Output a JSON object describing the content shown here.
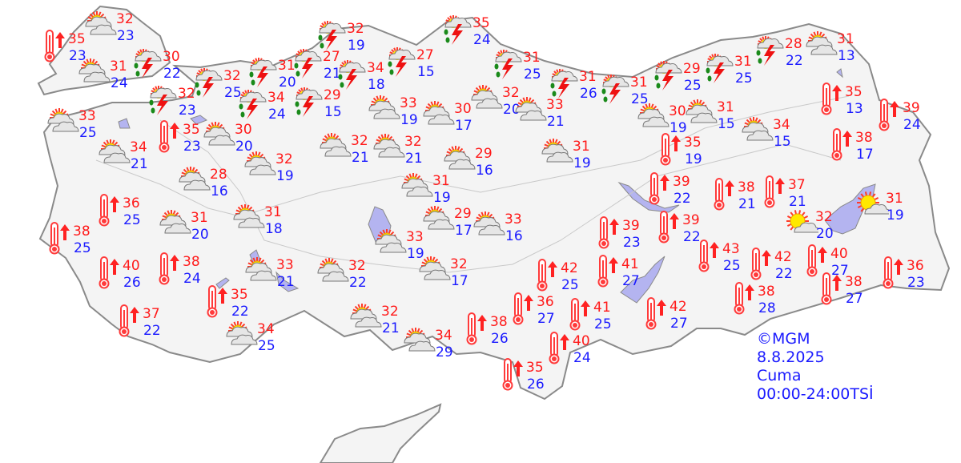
{
  "legend": {
    "copyright": "©MGM",
    "date": "8.8.2025",
    "day": "Cuma",
    "period": "00:00-24:00TSİ"
  },
  "colors": {
    "max_temp": "#ff1a1a",
    "min_temp": "#1a1aff",
    "land": "#f4f4f4",
    "border": "#8a8a8a",
    "water": "#b4b4f0"
  },
  "icon_types": {
    "partly": "partly-cloudy-icon",
    "storm": "thunderstorm-icon",
    "hot": "hot-thermometer-icon",
    "sunny": "mostly-sunny-icon"
  },
  "stations": [
    {
      "type": "partly",
      "max": "32",
      "min": "23"
    },
    {
      "type": "hot",
      "max": "35",
      "min": "23"
    },
    {
      "type": "partly",
      "max": "31",
      "min": "24"
    },
    {
      "type": "storm",
      "max": "30",
      "min": "22"
    },
    {
      "type": "storm",
      "max": "32",
      "min": "25"
    },
    {
      "type": "storm",
      "max": "32",
      "min": "23"
    },
    {
      "type": "partly",
      "max": "33",
      "min": "25"
    },
    {
      "type": "hot",
      "max": "35",
      "min": "23"
    },
    {
      "type": "partly",
      "max": "30",
      "min": "20"
    },
    {
      "type": "partly",
      "max": "34",
      "min": "21"
    },
    {
      "type": "partly",
      "max": "28",
      "min": "16"
    },
    {
      "type": "partly",
      "max": "32",
      "min": "19"
    },
    {
      "type": "storm",
      "max": "31",
      "min": "20"
    },
    {
      "type": "storm",
      "max": "27",
      "min": "21"
    },
    {
      "type": "storm",
      "max": "34",
      "min": "24"
    },
    {
      "type": "storm",
      "max": "32",
      "min": "19"
    },
    {
      "type": "storm",
      "max": "34",
      "min": "18"
    },
    {
      "type": "storm",
      "max": "29",
      "min": "15"
    },
    {
      "type": "storm",
      "max": "27",
      "min": "15"
    },
    {
      "type": "storm",
      "max": "35",
      "min": "24"
    },
    {
      "type": "partly",
      "max": "33",
      "min": "19"
    },
    {
      "type": "partly",
      "max": "30",
      "min": "17"
    },
    {
      "type": "partly",
      "max": "32",
      "min": "20"
    },
    {
      "type": "partly",
      "max": "33",
      "min": "21"
    },
    {
      "type": "storm",
      "max": "31",
      "min": "25"
    },
    {
      "type": "storm",
      "max": "31",
      "min": "26"
    },
    {
      "type": "storm",
      "max": "31",
      "min": "25"
    },
    {
      "type": "storm",
      "max": "29",
      "min": "25"
    },
    {
      "type": "storm",
      "max": "31",
      "min": "25"
    },
    {
      "type": "storm",
      "max": "28",
      "min": "22"
    },
    {
      "type": "partly",
      "max": "31",
      "min": "13"
    },
    {
      "type": "partly",
      "max": "32",
      "min": "21"
    },
    {
      "type": "partly",
      "max": "32",
      "min": "21"
    },
    {
      "type": "partly",
      "max": "29",
      "min": "16"
    },
    {
      "type": "partly",
      "max": "31",
      "min": "19"
    },
    {
      "type": "partly",
      "max": "30",
      "min": "19"
    },
    {
      "type": "partly",
      "max": "31",
      "min": "15"
    },
    {
      "type": "partly",
      "max": "34",
      "min": "15"
    },
    {
      "type": "hot",
      "max": "35",
      "min": "13"
    },
    {
      "type": "hot",
      "max": "39",
      "min": "24"
    },
    {
      "type": "hot",
      "max": "38",
      "min": "17"
    },
    {
      "type": "hot",
      "max": "35",
      "min": "19"
    },
    {
      "type": "partly",
      "max": "31",
      "min": "19"
    },
    {
      "type": "partly",
      "max": "31",
      "min": "18"
    },
    {
      "type": "hot",
      "max": "36",
      "min": "25"
    },
    {
      "type": "partly",
      "max": "31",
      "min": "20"
    },
    {
      "type": "hot",
      "max": "38",
      "min": "25"
    },
    {
      "type": "partly",
      "max": "29",
      "min": "17"
    },
    {
      "type": "partly",
      "max": "33",
      "min": "16"
    },
    {
      "type": "partly",
      "max": "33",
      "min": "19"
    },
    {
      "type": "hot",
      "max": "39",
      "min": "22"
    },
    {
      "type": "hot",
      "max": "38",
      "min": "21"
    },
    {
      "type": "hot",
      "max": "37",
      "min": "21"
    },
    {
      "type": "sunny",
      "max": "31",
      "min": "19"
    },
    {
      "type": "sunny",
      "max": "32",
      "min": "20"
    },
    {
      "type": "hot",
      "max": "39",
      "min": "23"
    },
    {
      "type": "hot",
      "max": "39",
      "min": "22"
    },
    {
      "type": "hot",
      "max": "43",
      "min": "25"
    },
    {
      "type": "hot",
      "max": "42",
      "min": "22"
    },
    {
      "type": "hot",
      "max": "40",
      "min": "27"
    },
    {
      "type": "hot",
      "max": "36",
      "min": "23"
    },
    {
      "type": "hot",
      "max": "38",
      "min": "27"
    },
    {
      "type": "hot",
      "max": "38",
      "min": "28"
    },
    {
      "type": "hot",
      "max": "40",
      "min": "26"
    },
    {
      "type": "hot",
      "max": "38",
      "min": "24"
    },
    {
      "type": "partly",
      "max": "33",
      "min": "21"
    },
    {
      "type": "partly",
      "max": "32",
      "min": "22"
    },
    {
      "type": "partly",
      "max": "32",
      "min": "17"
    },
    {
      "type": "hot",
      "max": "42",
      "min": "25"
    },
    {
      "type": "hot",
      "max": "41",
      "min": "27"
    },
    {
      "type": "hot",
      "max": "36",
      "min": "27"
    },
    {
      "type": "hot",
      "max": "41",
      "min": "25"
    },
    {
      "type": "hot",
      "max": "42",
      "min": "27"
    },
    {
      "type": "hot",
      "max": "38",
      "min": "26"
    },
    {
      "type": "hot",
      "max": "40",
      "min": "24"
    },
    {
      "type": "hot",
      "max": "35",
      "min": "26"
    },
    {
      "type": "hot",
      "max": "37",
      "min": "22"
    },
    {
      "type": "hot",
      "max": "35",
      "min": "22"
    },
    {
      "type": "partly",
      "max": "34",
      "min": "25"
    },
    {
      "type": "partly",
      "max": "32",
      "min": "21"
    },
    {
      "type": "partly",
      "max": "34",
      "min": "29"
    }
  ]
}
